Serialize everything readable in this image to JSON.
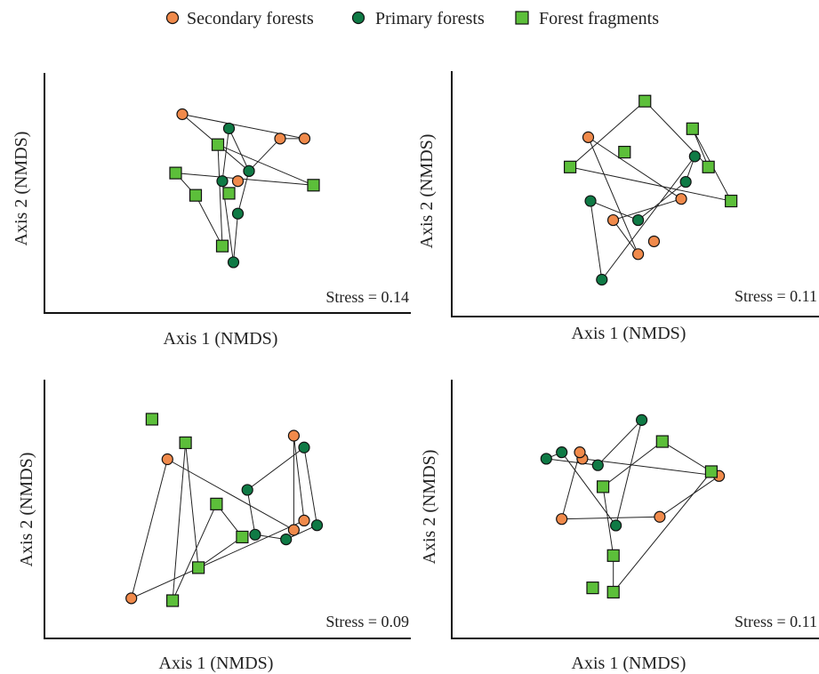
{
  "legend": {
    "placement": "top-center",
    "items": [
      {
        "label": "Secondary forests",
        "marker": "circle",
        "color": "#f08a4b"
      },
      {
        "label": "Primary forests",
        "marker": "circle",
        "color": "#0f7a45"
      },
      {
        "label": "Forest fragments",
        "marker": "square",
        "color": "#5cbf3a"
      }
    ]
  },
  "colors": {
    "secondary": "#f08a4b",
    "primary": "#0f7a45",
    "fragment": "#5cbf3a",
    "stroke": "#111111"
  },
  "chart_data": [
    {
      "type": "scatter",
      "xlabel": "Axis 1 (NMDS)",
      "ylabel": "Axis 2 (NMDS)",
      "xlim": [
        0,
        100
      ],
      "ylim": [
        0,
        100
      ],
      "annotation": "Stress = 0.14",
      "secondary": [
        [
          30,
          84
        ],
        [
          85,
          72
        ],
        [
          74,
          72
        ],
        [
          60,
          56
        ],
        [
          55,
          51
        ]
      ],
      "primary": [
        [
          55,
          35
        ],
        [
          60,
          56
        ],
        [
          51,
          77
        ],
        [
          48,
          51
        ],
        [
          53,
          11
        ]
      ],
      "fragment": [
        [
          46,
          69
        ],
        [
          89,
          49
        ],
        [
          27,
          55
        ],
        [
          36,
          44
        ],
        [
          48,
          19
        ],
        [
          51,
          45
        ]
      ],
      "hull_secondary": [
        0,
        1,
        2,
        3
      ],
      "hull_primary": [
        0,
        1,
        2,
        3,
        4
      ],
      "hull_fragment": [
        0,
        1,
        2,
        3,
        4
      ]
    },
    {
      "type": "scatter",
      "xlabel": "Axis 1 (NMDS)",
      "ylabel": "Axis 2 (NMDS)",
      "xlim": [
        0,
        100
      ],
      "ylim": [
        0,
        100
      ],
      "annotation": "Stress = 0.11",
      "secondary": [
        [
          30,
          76
        ],
        [
          71,
          47
        ],
        [
          41,
          37
        ],
        [
          52,
          21
        ],
        [
          59,
          27
        ]
      ],
      "primary": [
        [
          77,
          67
        ],
        [
          73,
          55
        ],
        [
          52,
          37
        ],
        [
          31,
          46
        ],
        [
          36,
          9
        ]
      ],
      "fragment": [
        [
          55,
          93
        ],
        [
          83,
          62
        ],
        [
          76,
          80
        ],
        [
          93,
          46
        ],
        [
          22,
          62
        ],
        [
          46,
          69
        ]
      ],
      "hull_secondary": [
        0,
        1,
        2,
        3
      ],
      "hull_primary": [
        0,
        1,
        2,
        3,
        4
      ],
      "hull_fragment": [
        0,
        1,
        2,
        3,
        4
      ]
    },
    {
      "type": "scatter",
      "xlabel": "Axis 1 (NMDS)",
      "ylabel": "Axis 2 (NMDS)",
      "xlim": [
        0,
        100
      ],
      "ylim": [
        0,
        100
      ],
      "annotation": "Stress = 0.09",
      "secondary": [
        [
          27,
          70
        ],
        [
          76,
          40
        ],
        [
          76,
          80
        ],
        [
          80,
          44
        ],
        [
          13,
          11
        ]
      ],
      "primary": [
        [
          61,
          38
        ],
        [
          73,
          36
        ],
        [
          85,
          42
        ],
        [
          80,
          75
        ],
        [
          58,
          57
        ]
      ],
      "fragment": [
        [
          46,
          51
        ],
        [
          56,
          37
        ],
        [
          39,
          24
        ],
        [
          34,
          77
        ],
        [
          29,
          10
        ],
        [
          21,
          87
        ]
      ],
      "hull_secondary": [
        0,
        1,
        2,
        3,
        4
      ],
      "hull_primary": [
        0,
        1,
        2,
        3,
        4
      ],
      "hull_fragment": [
        0,
        1,
        2,
        3,
        4
      ]
    },
    {
      "type": "scatter",
      "xlabel": "Axis 1 (NMDS)",
      "ylabel": "Axis 2 (NMDS)",
      "xlim": [
        0,
        100
      ],
      "ylim": [
        0,
        100
      ],
      "annotation": "Stress = 0.11",
      "secondary": [
        [
          31,
          74
        ],
        [
          84,
          66
        ],
        [
          61,
          47
        ],
        [
          23,
          46
        ],
        [
          30,
          77
        ]
      ],
      "primary": [
        [
          23,
          77
        ],
        [
          17,
          74
        ],
        [
          37,
          71
        ],
        [
          54,
          92
        ],
        [
          44,
          43
        ]
      ],
      "fragment": [
        [
          43,
          29
        ],
        [
          39,
          61
        ],
        [
          62,
          82
        ],
        [
          81,
          68
        ],
        [
          43,
          12
        ],
        [
          35,
          14
        ]
      ],
      "hull_secondary": [
        0,
        1,
        2,
        3,
        4
      ],
      "hull_primary": [
        0,
        1,
        2,
        3,
        4
      ],
      "hull_fragment": [
        0,
        1,
        2,
        3,
        4
      ]
    }
  ]
}
